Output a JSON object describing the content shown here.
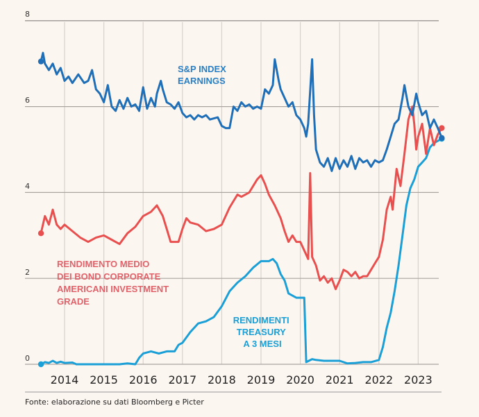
{
  "chart_data": {
    "type": "line",
    "title": "",
    "xlabel": "",
    "ylabel": "",
    "ylim": [
      0,
      8
    ],
    "xlim": [
      2013.4,
      2023.7
    ],
    "yticks": [
      "0",
      "2",
      "4",
      "6",
      "8"
    ],
    "xticks": [
      "2014",
      "2015",
      "2016",
      "2017",
      "2018",
      "2019",
      "2020",
      "2021",
      "2022",
      "2023"
    ],
    "grid": true,
    "legend": "inline labels",
    "source": "Fonte: elaborazione su dati Bloomberg e Picter",
    "series": [
      {
        "name": "S&P INDEX EARNINGS",
        "label_lines": [
          "S&P INDEX",
          "EARNINGS"
        ],
        "color": "#1f6fb8",
        "points": [
          [
            2013.4,
            7.05
          ],
          [
            2013.45,
            7.25
          ],
          [
            2013.5,
            7.0
          ],
          [
            2013.6,
            6.85
          ],
          [
            2013.7,
            7.0
          ],
          [
            2013.8,
            6.75
          ],
          [
            2013.9,
            6.9
          ],
          [
            2014.0,
            6.6
          ],
          [
            2014.1,
            6.7
          ],
          [
            2014.2,
            6.55
          ],
          [
            2014.35,
            6.75
          ],
          [
            2014.5,
            6.55
          ],
          [
            2014.6,
            6.6
          ],
          [
            2014.7,
            6.85
          ],
          [
            2014.8,
            6.4
          ],
          [
            2014.9,
            6.3
          ],
          [
            2015.0,
            6.1
          ],
          [
            2015.1,
            6.5
          ],
          [
            2015.2,
            6.0
          ],
          [
            2015.3,
            5.9
          ],
          [
            2015.4,
            6.15
          ],
          [
            2015.5,
            5.95
          ],
          [
            2015.6,
            6.2
          ],
          [
            2015.7,
            6.0
          ],
          [
            2015.8,
            6.05
          ],
          [
            2015.9,
            5.9
          ],
          [
            2016.0,
            6.45
          ],
          [
            2016.1,
            5.95
          ],
          [
            2016.2,
            6.2
          ],
          [
            2016.3,
            6.0
          ],
          [
            2016.35,
            6.3
          ],
          [
            2016.45,
            6.6
          ],
          [
            2016.5,
            6.4
          ],
          [
            2016.6,
            6.1
          ],
          [
            2016.7,
            6.05
          ],
          [
            2016.8,
            5.95
          ],
          [
            2016.9,
            6.1
          ],
          [
            2017.0,
            5.85
          ],
          [
            2017.1,
            5.75
          ],
          [
            2017.2,
            5.8
          ],
          [
            2017.3,
            5.7
          ],
          [
            2017.4,
            5.8
          ],
          [
            2017.5,
            5.75
          ],
          [
            2017.6,
            5.8
          ],
          [
            2017.7,
            5.7
          ],
          [
            2017.9,
            5.75
          ],
          [
            2018.0,
            5.55
          ],
          [
            2018.1,
            5.5
          ],
          [
            2018.2,
            5.5
          ],
          [
            2018.3,
            6.0
          ],
          [
            2018.4,
            5.9
          ],
          [
            2018.5,
            6.1
          ],
          [
            2018.6,
            6.0
          ],
          [
            2018.7,
            6.05
          ],
          [
            2018.8,
            5.95
          ],
          [
            2018.9,
            6.0
          ],
          [
            2019.0,
            5.95
          ],
          [
            2019.1,
            6.4
          ],
          [
            2019.2,
            6.3
          ],
          [
            2019.3,
            6.5
          ],
          [
            2019.35,
            7.1
          ],
          [
            2019.45,
            6.6
          ],
          [
            2019.5,
            6.4
          ],
          [
            2019.6,
            6.2
          ],
          [
            2019.7,
            6.0
          ],
          [
            2019.8,
            6.1
          ],
          [
            2019.9,
            5.8
          ],
          [
            2020.0,
            5.7
          ],
          [
            2020.1,
            5.5
          ],
          [
            2020.15,
            5.3
          ],
          [
            2020.2,
            5.6
          ],
          [
            2020.3,
            7.1
          ],
          [
            2020.35,
            5.8
          ],
          [
            2020.4,
            5.0
          ],
          [
            2020.5,
            4.7
          ],
          [
            2020.6,
            4.6
          ],
          [
            2020.7,
            4.8
          ],
          [
            2020.8,
            4.5
          ],
          [
            2020.9,
            4.8
          ],
          [
            2021.0,
            4.55
          ],
          [
            2021.1,
            4.75
          ],
          [
            2021.2,
            4.6
          ],
          [
            2021.3,
            4.85
          ],
          [
            2021.4,
            4.55
          ],
          [
            2021.5,
            4.8
          ],
          [
            2021.6,
            4.7
          ],
          [
            2021.7,
            4.75
          ],
          [
            2021.8,
            4.6
          ],
          [
            2021.9,
            4.75
          ],
          [
            2022.0,
            4.7
          ],
          [
            2022.1,
            4.75
          ],
          [
            2022.2,
            5.0
          ],
          [
            2022.3,
            5.3
          ],
          [
            2022.4,
            5.6
          ],
          [
            2022.5,
            5.7
          ],
          [
            2022.6,
            6.2
          ],
          [
            2022.65,
            6.5
          ],
          [
            2022.75,
            6.0
          ],
          [
            2022.85,
            5.8
          ],
          [
            2022.95,
            6.3
          ],
          [
            2023.0,
            6.1
          ],
          [
            2023.1,
            5.8
          ],
          [
            2023.2,
            5.9
          ],
          [
            2023.3,
            5.5
          ],
          [
            2023.4,
            5.7
          ],
          [
            2023.5,
            5.5
          ],
          [
            2023.6,
            5.27
          ]
        ]
      },
      {
        "name": "RENDIMENTO MEDIO DEI BOND CORPORATE AMERICANI INVESTMENT GRADE",
        "label_lines": [
          "RENDIMENTO MEDIO",
          "DEI BOND CORPORATE",
          "AMERICANI INVESTMENT",
          "GRADE"
        ],
        "color": "#e8504f",
        "points": [
          [
            2013.4,
            3.05
          ],
          [
            2013.5,
            3.45
          ],
          [
            2013.6,
            3.25
          ],
          [
            2013.7,
            3.6
          ],
          [
            2013.8,
            3.25
          ],
          [
            2013.9,
            3.15
          ],
          [
            2014.0,
            3.25
          ],
          [
            2014.2,
            3.1
          ],
          [
            2014.4,
            2.95
          ],
          [
            2014.6,
            2.85
          ],
          [
            2014.8,
            2.95
          ],
          [
            2015.0,
            3.0
          ],
          [
            2015.2,
            2.9
          ],
          [
            2015.4,
            2.8
          ],
          [
            2015.6,
            3.05
          ],
          [
            2015.8,
            3.2
          ],
          [
            2016.0,
            3.45
          ],
          [
            2016.2,
            3.55
          ],
          [
            2016.35,
            3.7
          ],
          [
            2016.5,
            3.45
          ],
          [
            2016.6,
            3.15
          ],
          [
            2016.7,
            2.85
          ],
          [
            2016.9,
            2.85
          ],
          [
            2017.0,
            3.15
          ],
          [
            2017.1,
            3.4
          ],
          [
            2017.2,
            3.3
          ],
          [
            2017.4,
            3.25
          ],
          [
            2017.6,
            3.1
          ],
          [
            2017.8,
            3.15
          ],
          [
            2018.0,
            3.25
          ],
          [
            2018.2,
            3.65
          ],
          [
            2018.4,
            3.95
          ],
          [
            2018.5,
            3.9
          ],
          [
            2018.7,
            4.0
          ],
          [
            2018.9,
            4.3
          ],
          [
            2019.0,
            4.4
          ],
          [
            2019.1,
            4.2
          ],
          [
            2019.2,
            3.95
          ],
          [
            2019.35,
            3.7
          ],
          [
            2019.5,
            3.4
          ],
          [
            2019.6,
            3.1
          ],
          [
            2019.7,
            2.85
          ],
          [
            2019.8,
            3.0
          ],
          [
            2019.9,
            2.85
          ],
          [
            2020.0,
            2.85
          ],
          [
            2020.1,
            2.65
          ],
          [
            2020.2,
            2.45
          ],
          [
            2020.25,
            4.45
          ],
          [
            2020.3,
            2.5
          ],
          [
            2020.4,
            2.3
          ],
          [
            2020.5,
            1.95
          ],
          [
            2020.6,
            2.05
          ],
          [
            2020.7,
            1.9
          ],
          [
            2020.8,
            2.0
          ],
          [
            2020.9,
            1.75
          ],
          [
            2021.0,
            1.95
          ],
          [
            2021.1,
            2.2
          ],
          [
            2021.2,
            2.15
          ],
          [
            2021.3,
            2.05
          ],
          [
            2021.4,
            2.15
          ],
          [
            2021.5,
            2.0
          ],
          [
            2021.6,
            2.05
          ],
          [
            2021.7,
            2.05
          ],
          [
            2021.8,
            2.2
          ],
          [
            2021.9,
            2.35
          ],
          [
            2022.0,
            2.5
          ],
          [
            2022.1,
            2.9
          ],
          [
            2022.2,
            3.6
          ],
          [
            2022.3,
            3.9
          ],
          [
            2022.35,
            3.6
          ],
          [
            2022.45,
            4.55
          ],
          [
            2022.55,
            4.15
          ],
          [
            2022.65,
            4.9
          ],
          [
            2022.75,
            5.7
          ],
          [
            2022.85,
            6.0
          ],
          [
            2022.9,
            5.6
          ],
          [
            2022.95,
            5.0
          ],
          [
            2023.0,
            5.3
          ],
          [
            2023.1,
            5.6
          ],
          [
            2023.2,
            4.9
          ],
          [
            2023.3,
            5.5
          ],
          [
            2023.4,
            5.1
          ],
          [
            2023.5,
            5.35
          ],
          [
            2023.6,
            5.5
          ]
        ]
      },
      {
        "name": "RENDIMENTI TREASURY A 3 MESI",
        "label_lines": [
          "RENDIMENTI",
          "TREASURY",
          "A 3 MESI"
        ],
        "color": "#1a9fd6",
        "points": [
          [
            2013.4,
            0.0
          ],
          [
            2013.5,
            0.05
          ],
          [
            2013.6,
            0.03
          ],
          [
            2013.7,
            0.08
          ],
          [
            2013.8,
            0.03
          ],
          [
            2013.9,
            0.06
          ],
          [
            2014.0,
            0.03
          ],
          [
            2014.2,
            0.04
          ],
          [
            2014.3,
            0.0
          ],
          [
            2014.6,
            0.0
          ],
          [
            2015.0,
            0.0
          ],
          [
            2015.4,
            0.0
          ],
          [
            2015.6,
            0.02
          ],
          [
            2015.8,
            0.0
          ],
          [
            2015.9,
            0.15
          ],
          [
            2016.0,
            0.25
          ],
          [
            2016.2,
            0.3
          ],
          [
            2016.4,
            0.25
          ],
          [
            2016.6,
            0.3
          ],
          [
            2016.8,
            0.3
          ],
          [
            2016.9,
            0.45
          ],
          [
            2017.0,
            0.5
          ],
          [
            2017.2,
            0.75
          ],
          [
            2017.4,
            0.95
          ],
          [
            2017.6,
            1.0
          ],
          [
            2017.8,
            1.1
          ],
          [
            2018.0,
            1.35
          ],
          [
            2018.2,
            1.7
          ],
          [
            2018.4,
            1.9
          ],
          [
            2018.6,
            2.05
          ],
          [
            2018.8,
            2.25
          ],
          [
            2019.0,
            2.4
          ],
          [
            2019.2,
            2.4
          ],
          [
            2019.3,
            2.45
          ],
          [
            2019.4,
            2.35
          ],
          [
            2019.5,
            2.1
          ],
          [
            2019.6,
            1.95
          ],
          [
            2019.7,
            1.65
          ],
          [
            2019.9,
            1.55
          ],
          [
            2020.0,
            1.55
          ],
          [
            2020.1,
            1.55
          ],
          [
            2020.15,
            0.05
          ],
          [
            2020.3,
            0.12
          ],
          [
            2020.4,
            0.1
          ],
          [
            2020.6,
            0.08
          ],
          [
            2020.8,
            0.08
          ],
          [
            2021.0,
            0.08
          ],
          [
            2021.2,
            0.02
          ],
          [
            2021.4,
            0.03
          ],
          [
            2021.6,
            0.05
          ],
          [
            2021.8,
            0.05
          ],
          [
            2022.0,
            0.1
          ],
          [
            2022.1,
            0.4
          ],
          [
            2022.2,
            0.85
          ],
          [
            2022.3,
            1.2
          ],
          [
            2022.4,
            1.7
          ],
          [
            2022.5,
            2.3
          ],
          [
            2022.6,
            3.0
          ],
          [
            2022.7,
            3.7
          ],
          [
            2022.8,
            4.1
          ],
          [
            2022.9,
            4.3
          ],
          [
            2023.0,
            4.6
          ],
          [
            2023.1,
            4.7
          ],
          [
            2023.2,
            4.8
          ],
          [
            2023.3,
            5.05
          ],
          [
            2023.4,
            5.15
          ],
          [
            2023.5,
            5.2
          ],
          [
            2023.6,
            5.25
          ]
        ]
      }
    ]
  }
}
